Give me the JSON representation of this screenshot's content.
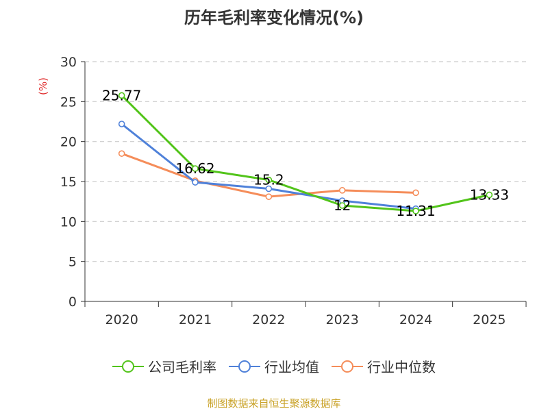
{
  "chart_data": {
    "type": "line",
    "title": "历年毛利率变化情况(%)",
    "ylabel": "(%)",
    "categories": [
      "2020",
      "2021",
      "2022",
      "2023",
      "2024",
      "2025"
    ],
    "ylim": [
      0,
      30
    ],
    "yticks": [
      0,
      5,
      10,
      15,
      20,
      25,
      30
    ],
    "ytick_labels": [
      "0",
      "5",
      "10",
      "15",
      "20",
      "25",
      "30"
    ],
    "grid": true,
    "legend_position": "bottom",
    "series": [
      {
        "name": "公司毛利率",
        "color": "#52c41a",
        "values": [
          25.77,
          16.62,
          15.2,
          12,
          11.31,
          13.33
        ],
        "labels": [
          "25.77",
          "16.62",
          "15.2",
          "12",
          "11.31",
          "13.33"
        ]
      },
      {
        "name": "行业均值",
        "color": "#4f81d9",
        "values": [
          22.2,
          14.9,
          14.1,
          12.6,
          11.6,
          null
        ]
      },
      {
        "name": "行业中位数",
        "color": "#f58d5a",
        "values": [
          18.5,
          15.1,
          13.1,
          13.9,
          13.6,
          null
        ]
      }
    ]
  },
  "footer": "制图数据来自恒生聚源数据库"
}
